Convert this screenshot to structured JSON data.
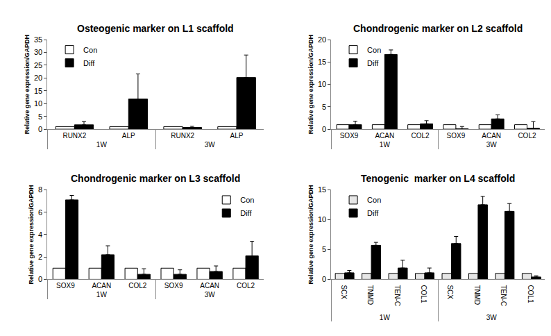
{
  "chart_data": [
    {
      "type": "bar",
      "title": "Osteogenic marker on L1 scaffold",
      "y_label": "Relative gene expression/GAPDH",
      "groups": [
        "1W",
        "1W",
        "3W",
        "3W"
      ],
      "categories": [
        "RUNX2",
        "ALP",
        "RUNX2",
        "ALP"
      ],
      "series": [
        {
          "name": "Con",
          "color": "#ffffff",
          "values": [
            1,
            1,
            1,
            1
          ]
        },
        {
          "name": "Diff",
          "color": "#000000",
          "values": [
            1.7,
            11.8,
            0.7,
            20.2
          ],
          "errors": [
            1.3,
            9.8,
            0.4,
            8.8
          ]
        }
      ],
      "ylim": [
        0,
        35
      ],
      "yticks": [
        0,
        5,
        10,
        15,
        20,
        25,
        30,
        35
      ],
      "legend": "upper left"
    },
    {
      "type": "bar",
      "title": "Chondrogenic marker on L2 scaffold",
      "y_label": "Relative gene expression/GAPDH",
      "groups": [
        "1W",
        "1W",
        "1W",
        "3W",
        "3W",
        "3W"
      ],
      "categories": [
        "SOX9",
        "ACAN",
        "COL2",
        "SOX9",
        "ACAN",
        "COL2"
      ],
      "series": [
        {
          "name": "Con",
          "color": "#ffffff",
          "values": [
            1,
            1,
            1,
            1,
            1,
            1
          ]
        },
        {
          "name": "Diff",
          "color": "#000000",
          "values": [
            1.0,
            16.7,
            1.2,
            0.1,
            2.3,
            0.2
          ],
          "errors": [
            0.8,
            1.0,
            0.7,
            0.5,
            0.9,
            1.5
          ]
        }
      ],
      "ylim": [
        0,
        20
      ],
      "yticks": [
        0,
        5,
        10,
        15,
        20
      ],
      "legend": "upper left"
    },
    {
      "type": "bar",
      "title": "Chondrogenic marker on L3 scaffold",
      "y_label": "Relative gene expression/GAPDH",
      "groups": [
        "1W",
        "1W",
        "1W",
        "3W",
        "3W",
        "3W"
      ],
      "categories": [
        "SOX9",
        "ACAN",
        "COL2",
        "SOX9",
        "ACAN",
        "COL2"
      ],
      "series": [
        {
          "name": "Con",
          "color": "#ffffff",
          "values": [
            1,
            1,
            1,
            1,
            1,
            1
          ]
        },
        {
          "name": "Diff",
          "color": "#000000",
          "values": [
            7.1,
            2.2,
            0.45,
            0.45,
            0.7,
            2.1
          ],
          "errors": [
            0.4,
            0.8,
            0.5,
            0.4,
            0.5,
            1.3
          ]
        }
      ],
      "ylim": [
        0,
        8
      ],
      "yticks": [
        0,
        2,
        4,
        6,
        8
      ],
      "legend": "upper right"
    },
    {
      "type": "bar",
      "title": "Tenogenic  marker on L4 scaffold",
      "y_label": "Relative gene expression/GAPDH",
      "groups": [
        "1W",
        "1W",
        "1W",
        "1W",
        "3W",
        "3W",
        "3W",
        "3W"
      ],
      "categories": [
        "SCX",
        "TNMD",
        "TEN-C",
        "COL1",
        "SCX",
        "TNMD",
        "TEN-C",
        "COL1"
      ],
      "series": [
        {
          "name": "Con",
          "color": "#e6e6e6",
          "values": [
            1,
            1,
            1,
            1,
            1,
            1,
            1,
            1
          ]
        },
        {
          "name": "Diff",
          "color": "#000000",
          "values": [
            1.1,
            5.7,
            1.9,
            1.1,
            6.0,
            12.5,
            11.4,
            0.4
          ],
          "errors": [
            0.4,
            0.5,
            1.3,
            0.8,
            1.2,
            1.4,
            1.3,
            0.2
          ]
        }
      ],
      "ylim": [
        0,
        15
      ],
      "yticks": [
        0,
        5,
        10,
        15
      ],
      "legend": "upper left"
    }
  ]
}
